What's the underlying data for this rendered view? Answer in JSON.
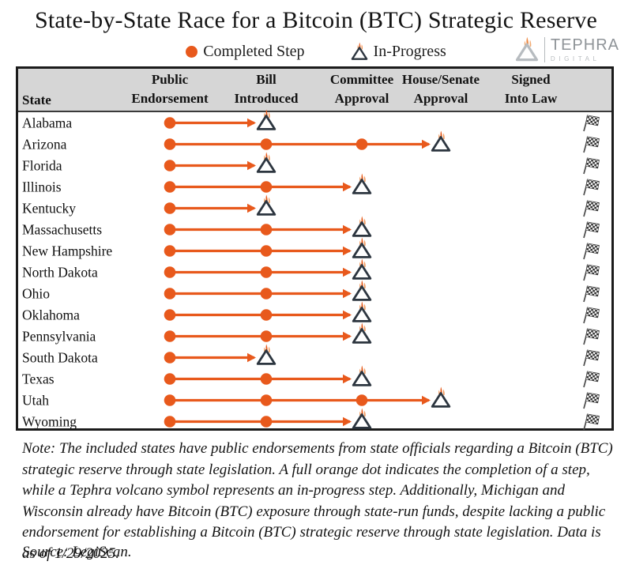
{
  "page": {
    "brand": {
      "name": "TEPHRA",
      "sub": "DIGITAL"
    },
    "note": "Note: The included states have public endorsements from state officials regarding a Bitcoin (BTC) strategic reserve through state legislation. A full orange dot indicates the completion of a step, while a Tephra volcano symbol represents an in-progress step. Additionally, Michigan and Wisconsin already have Bitcoin (BTC) exposure through state-run funds, despite lacking a public endorsement for establishing a Bitcoin (BTC) strategic reserve through state legislation. Data is as of 1/29/2025.",
    "source": "Source: LegiScan.",
    "colors": {
      "accent_orange": "#e8591c",
      "flame_orange_light": "#ef8a44",
      "header_bg": "#d6d6d6",
      "table_border": "#1b1b1b",
      "volcano_outline": "#2c353f",
      "logo_gray": "#8f9498"
    }
  },
  "chart_data": {
    "type": "table",
    "title": "State-by-State Race for a Bitcoin (BTC) Strategic Reserve",
    "legend": [
      {
        "marker": "dot",
        "label": "Completed Step"
      },
      {
        "marker": "volcano",
        "label": "In-Progress"
      }
    ],
    "columns": [
      "State",
      "Public Endorsement",
      "Bill Introduced",
      "Committee Approval",
      "House/Senate Approval",
      "Signed Into Law"
    ],
    "finish_marker": "checkered-flag",
    "rows": [
      {
        "state": "Alabama",
        "completed": [
          "Public Endorsement"
        ],
        "in_progress": "Bill Introduced"
      },
      {
        "state": "Arizona",
        "completed": [
          "Public Endorsement",
          "Bill Introduced",
          "Committee Approval"
        ],
        "in_progress": "House/Senate Approval"
      },
      {
        "state": "Florida",
        "completed": [
          "Public Endorsement"
        ],
        "in_progress": "Bill Introduced"
      },
      {
        "state": "Illinois",
        "completed": [
          "Public Endorsement",
          "Bill Introduced"
        ],
        "in_progress": "Committee Approval"
      },
      {
        "state": "Kentucky",
        "completed": [
          "Public Endorsement"
        ],
        "in_progress": "Bill Introduced"
      },
      {
        "state": "Massachusetts",
        "completed": [
          "Public Endorsement",
          "Bill Introduced"
        ],
        "in_progress": "Committee Approval"
      },
      {
        "state": "New Hampshire",
        "completed": [
          "Public Endorsement",
          "Bill Introduced"
        ],
        "in_progress": "Committee Approval"
      },
      {
        "state": "North Dakota",
        "completed": [
          "Public Endorsement",
          "Bill Introduced"
        ],
        "in_progress": "Committee Approval"
      },
      {
        "state": "Ohio",
        "completed": [
          "Public Endorsement",
          "Bill Introduced"
        ],
        "in_progress": "Committee Approval"
      },
      {
        "state": "Oklahoma",
        "completed": [
          "Public Endorsement",
          "Bill Introduced"
        ],
        "in_progress": "Committee Approval"
      },
      {
        "state": "Pennsylvania",
        "completed": [
          "Public Endorsement",
          "Bill Introduced"
        ],
        "in_progress": "Committee Approval"
      },
      {
        "state": "South Dakota",
        "completed": [
          "Public Endorsement"
        ],
        "in_progress": "Bill Introduced"
      },
      {
        "state": "Texas",
        "completed": [
          "Public Endorsement",
          "Bill Introduced"
        ],
        "in_progress": "Committee Approval"
      },
      {
        "state": "Utah",
        "completed": [
          "Public Endorsement",
          "Bill Introduced",
          "Committee Approval"
        ],
        "in_progress": "House/Senate Approval"
      },
      {
        "state": "Wyoming",
        "completed": [
          "Public Endorsement",
          "Bill Introduced"
        ],
        "in_progress": "Committee Approval"
      }
    ]
  }
}
